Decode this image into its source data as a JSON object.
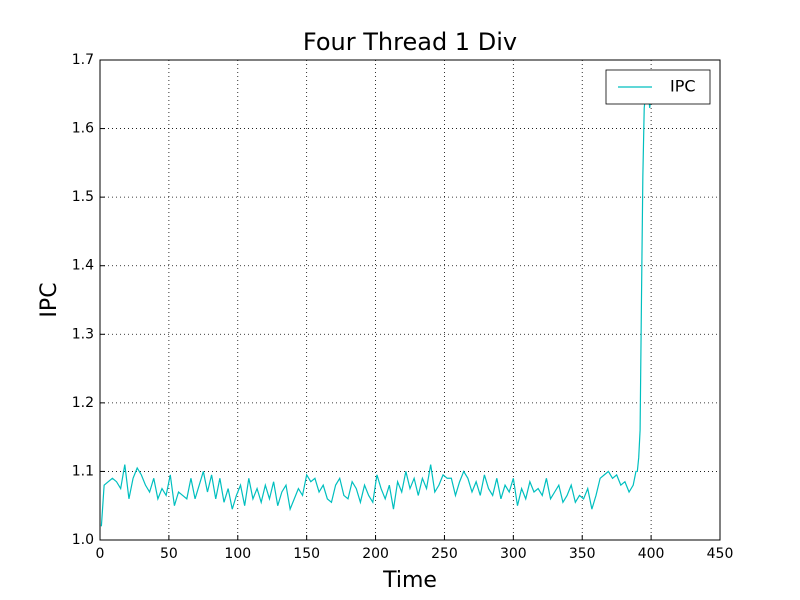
{
  "chart_data": {
    "type": "line",
    "title": "Four Thread 1 Div",
    "x_label": "Time",
    "y_label": "IPC",
    "xlim": [
      0,
      450
    ],
    "xticks": [
      0,
      50,
      100,
      150,
      200,
      250,
      300,
      350,
      400,
      450
    ],
    "ylim": [
      1.0,
      1.7
    ],
    "yticks": [
      {
        "value": 1.0,
        "label": "1.0"
      },
      1.1,
      1.2,
      1.3,
      1.4,
      1.5,
      1.6,
      1.7
    ],
    "grid": true,
    "legend": "upper right",
    "x": [
      1,
      3,
      6,
      9,
      12,
      15,
      18,
      21,
      24,
      27,
      30,
      33,
      36,
      39,
      42,
      45,
      48,
      51,
      54,
      57,
      60,
      63,
      66,
      69,
      72,
      75,
      78,
      81,
      84,
      87,
      90,
      93,
      96,
      99,
      102,
      105,
      108,
      111,
      114,
      117,
      120,
      123,
      126,
      129,
      132,
      135,
      138,
      141,
      144,
      147,
      150,
      153,
      156,
      159,
      162,
      165,
      168,
      171,
      174,
      177,
      180,
      183,
      186,
      189,
      192,
      195,
      198,
      201,
      204,
      207,
      210,
      213,
      216,
      219,
      222,
      225,
      228,
      231,
      234,
      237,
      240,
      243,
      246,
      249,
      252,
      255,
      258,
      261,
      264,
      267,
      270,
      273,
      276,
      279,
      282,
      285,
      288,
      291,
      294,
      297,
      300,
      303,
      306,
      309,
      312,
      315,
      318,
      321,
      324,
      327,
      330,
      333,
      336,
      339,
      342,
      345,
      348,
      351,
      354,
      357,
      360,
      363,
      366,
      369,
      372,
      375,
      378,
      381,
      384,
      387,
      388,
      389,
      390,
      391,
      392,
      393,
      394,
      395,
      396,
      397,
      398,
      399,
      400
    ],
    "series": [
      {
        "name": "IPC",
        "color": "#00bfbf",
        "values": [
          1.02,
          1.08,
          1.085,
          1.09,
          1.085,
          1.075,
          1.11,
          1.06,
          1.09,
          1.105,
          1.095,
          1.08,
          1.07,
          1.09,
          1.06,
          1.075,
          1.065,
          1.095,
          1.05,
          1.07,
          1.065,
          1.06,
          1.09,
          1.06,
          1.08,
          1.1,
          1.07,
          1.095,
          1.06,
          1.09,
          1.055,
          1.075,
          1.045,
          1.065,
          1.08,
          1.05,
          1.09,
          1.06,
          1.075,
          1.055,
          1.08,
          1.06,
          1.085,
          1.05,
          1.07,
          1.08,
          1.045,
          1.06,
          1.075,
          1.065,
          1.095,
          1.085,
          1.09,
          1.07,
          1.08,
          1.06,
          1.055,
          1.08,
          1.09,
          1.065,
          1.06,
          1.085,
          1.075,
          1.055,
          1.08,
          1.065,
          1.055,
          1.095,
          1.075,
          1.06,
          1.08,
          1.045,
          1.085,
          1.07,
          1.1,
          1.075,
          1.09,
          1.065,
          1.09,
          1.075,
          1.11,
          1.07,
          1.08,
          1.095,
          1.09,
          1.09,
          1.065,
          1.085,
          1.1,
          1.09,
          1.07,
          1.085,
          1.065,
          1.095,
          1.075,
          1.065,
          1.09,
          1.06,
          1.08,
          1.07,
          1.09,
          1.05,
          1.075,
          1.06,
          1.085,
          1.07,
          1.075,
          1.065,
          1.09,
          1.06,
          1.07,
          1.08,
          1.055,
          1.065,
          1.08,
          1.055,
          1.065,
          1.06,
          1.075,
          1.045,
          1.065,
          1.09,
          1.095,
          1.1,
          1.09,
          1.095,
          1.08,
          1.085,
          1.07,
          1.08,
          1.09,
          1.1,
          1.1,
          1.12,
          1.16,
          1.35,
          1.53,
          1.63,
          1.65,
          1.64,
          1.65,
          1.63,
          1.65
        ]
      }
    ]
  }
}
